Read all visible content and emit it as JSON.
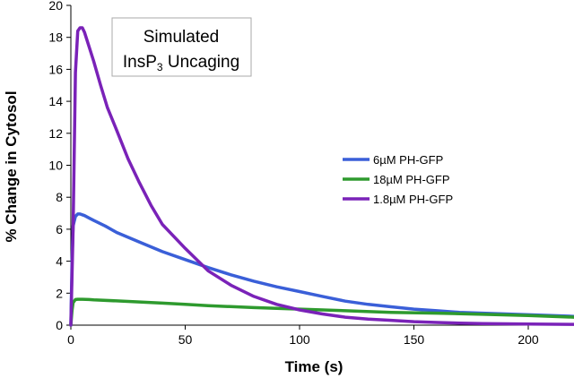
{
  "chart_data": {
    "type": "line",
    "title_line1": "Simulated",
    "title_line2_main": "InsP",
    "title_line2_sub": "3",
    "title_line2_rest": " Uncaging",
    "xlabel": "Time (s)",
    "ylabel": "% Change in Cytosol",
    "xlim": [
      0,
      220
    ],
    "ylim": [
      0,
      20
    ],
    "xticks": [
      0,
      50,
      100,
      150,
      200
    ],
    "yticks": [
      0,
      2,
      4,
      6,
      8,
      10,
      12,
      14,
      16,
      18,
      20
    ],
    "legend_position": "right",
    "series": [
      {
        "name": "6µM PH-GFP",
        "color": "#3a5fd8",
        "x": [
          0,
          0.5,
          1,
          2,
          3,
          4,
          5,
          6,
          8,
          10,
          15,
          20,
          30,
          40,
          50,
          60,
          70,
          80,
          90,
          100,
          110,
          120,
          130,
          140,
          150,
          160,
          170,
          180,
          190,
          200,
          210,
          220
        ],
        "y": [
          0,
          4.0,
          6.2,
          6.8,
          6.95,
          6.95,
          6.9,
          6.85,
          6.7,
          6.55,
          6.2,
          5.8,
          5.2,
          4.6,
          4.1,
          3.6,
          3.15,
          2.75,
          2.4,
          2.1,
          1.8,
          1.5,
          1.3,
          1.15,
          1.0,
          0.9,
          0.8,
          0.75,
          0.7,
          0.65,
          0.6,
          0.55
        ]
      },
      {
        "name": "18µM PH-GFP",
        "color": "#2e9a2e",
        "x": [
          0,
          0.5,
          1,
          2,
          3,
          5,
          8,
          10,
          20,
          30,
          40,
          50,
          60,
          80,
          100,
          120,
          140,
          160,
          180,
          200,
          220
        ],
        "y": [
          0,
          0.9,
          1.4,
          1.6,
          1.62,
          1.62,
          1.6,
          1.58,
          1.52,
          1.45,
          1.38,
          1.3,
          1.22,
          1.1,
          1.0,
          0.9,
          0.8,
          0.75,
          0.68,
          0.6,
          0.5
        ]
      },
      {
        "name": "1.8µM PH-GFP",
        "color": "#7a22b8",
        "x": [
          0,
          1,
          2,
          3,
          4,
          5,
          6,
          8,
          10,
          13,
          16,
          20,
          25,
          30,
          35,
          40,
          50,
          60,
          70,
          80,
          90,
          100,
          110,
          120,
          130,
          140,
          150,
          160,
          170,
          180,
          200,
          220
        ],
        "y": [
          0,
          6.0,
          15.8,
          18.4,
          18.6,
          18.6,
          18.3,
          17.4,
          16.5,
          15.0,
          13.6,
          12.2,
          10.4,
          8.9,
          7.5,
          6.3,
          4.8,
          3.4,
          2.5,
          1.8,
          1.3,
          0.95,
          0.7,
          0.5,
          0.38,
          0.3,
          0.22,
          0.17,
          0.13,
          0.1,
          0.07,
          0.05
        ]
      }
    ]
  }
}
